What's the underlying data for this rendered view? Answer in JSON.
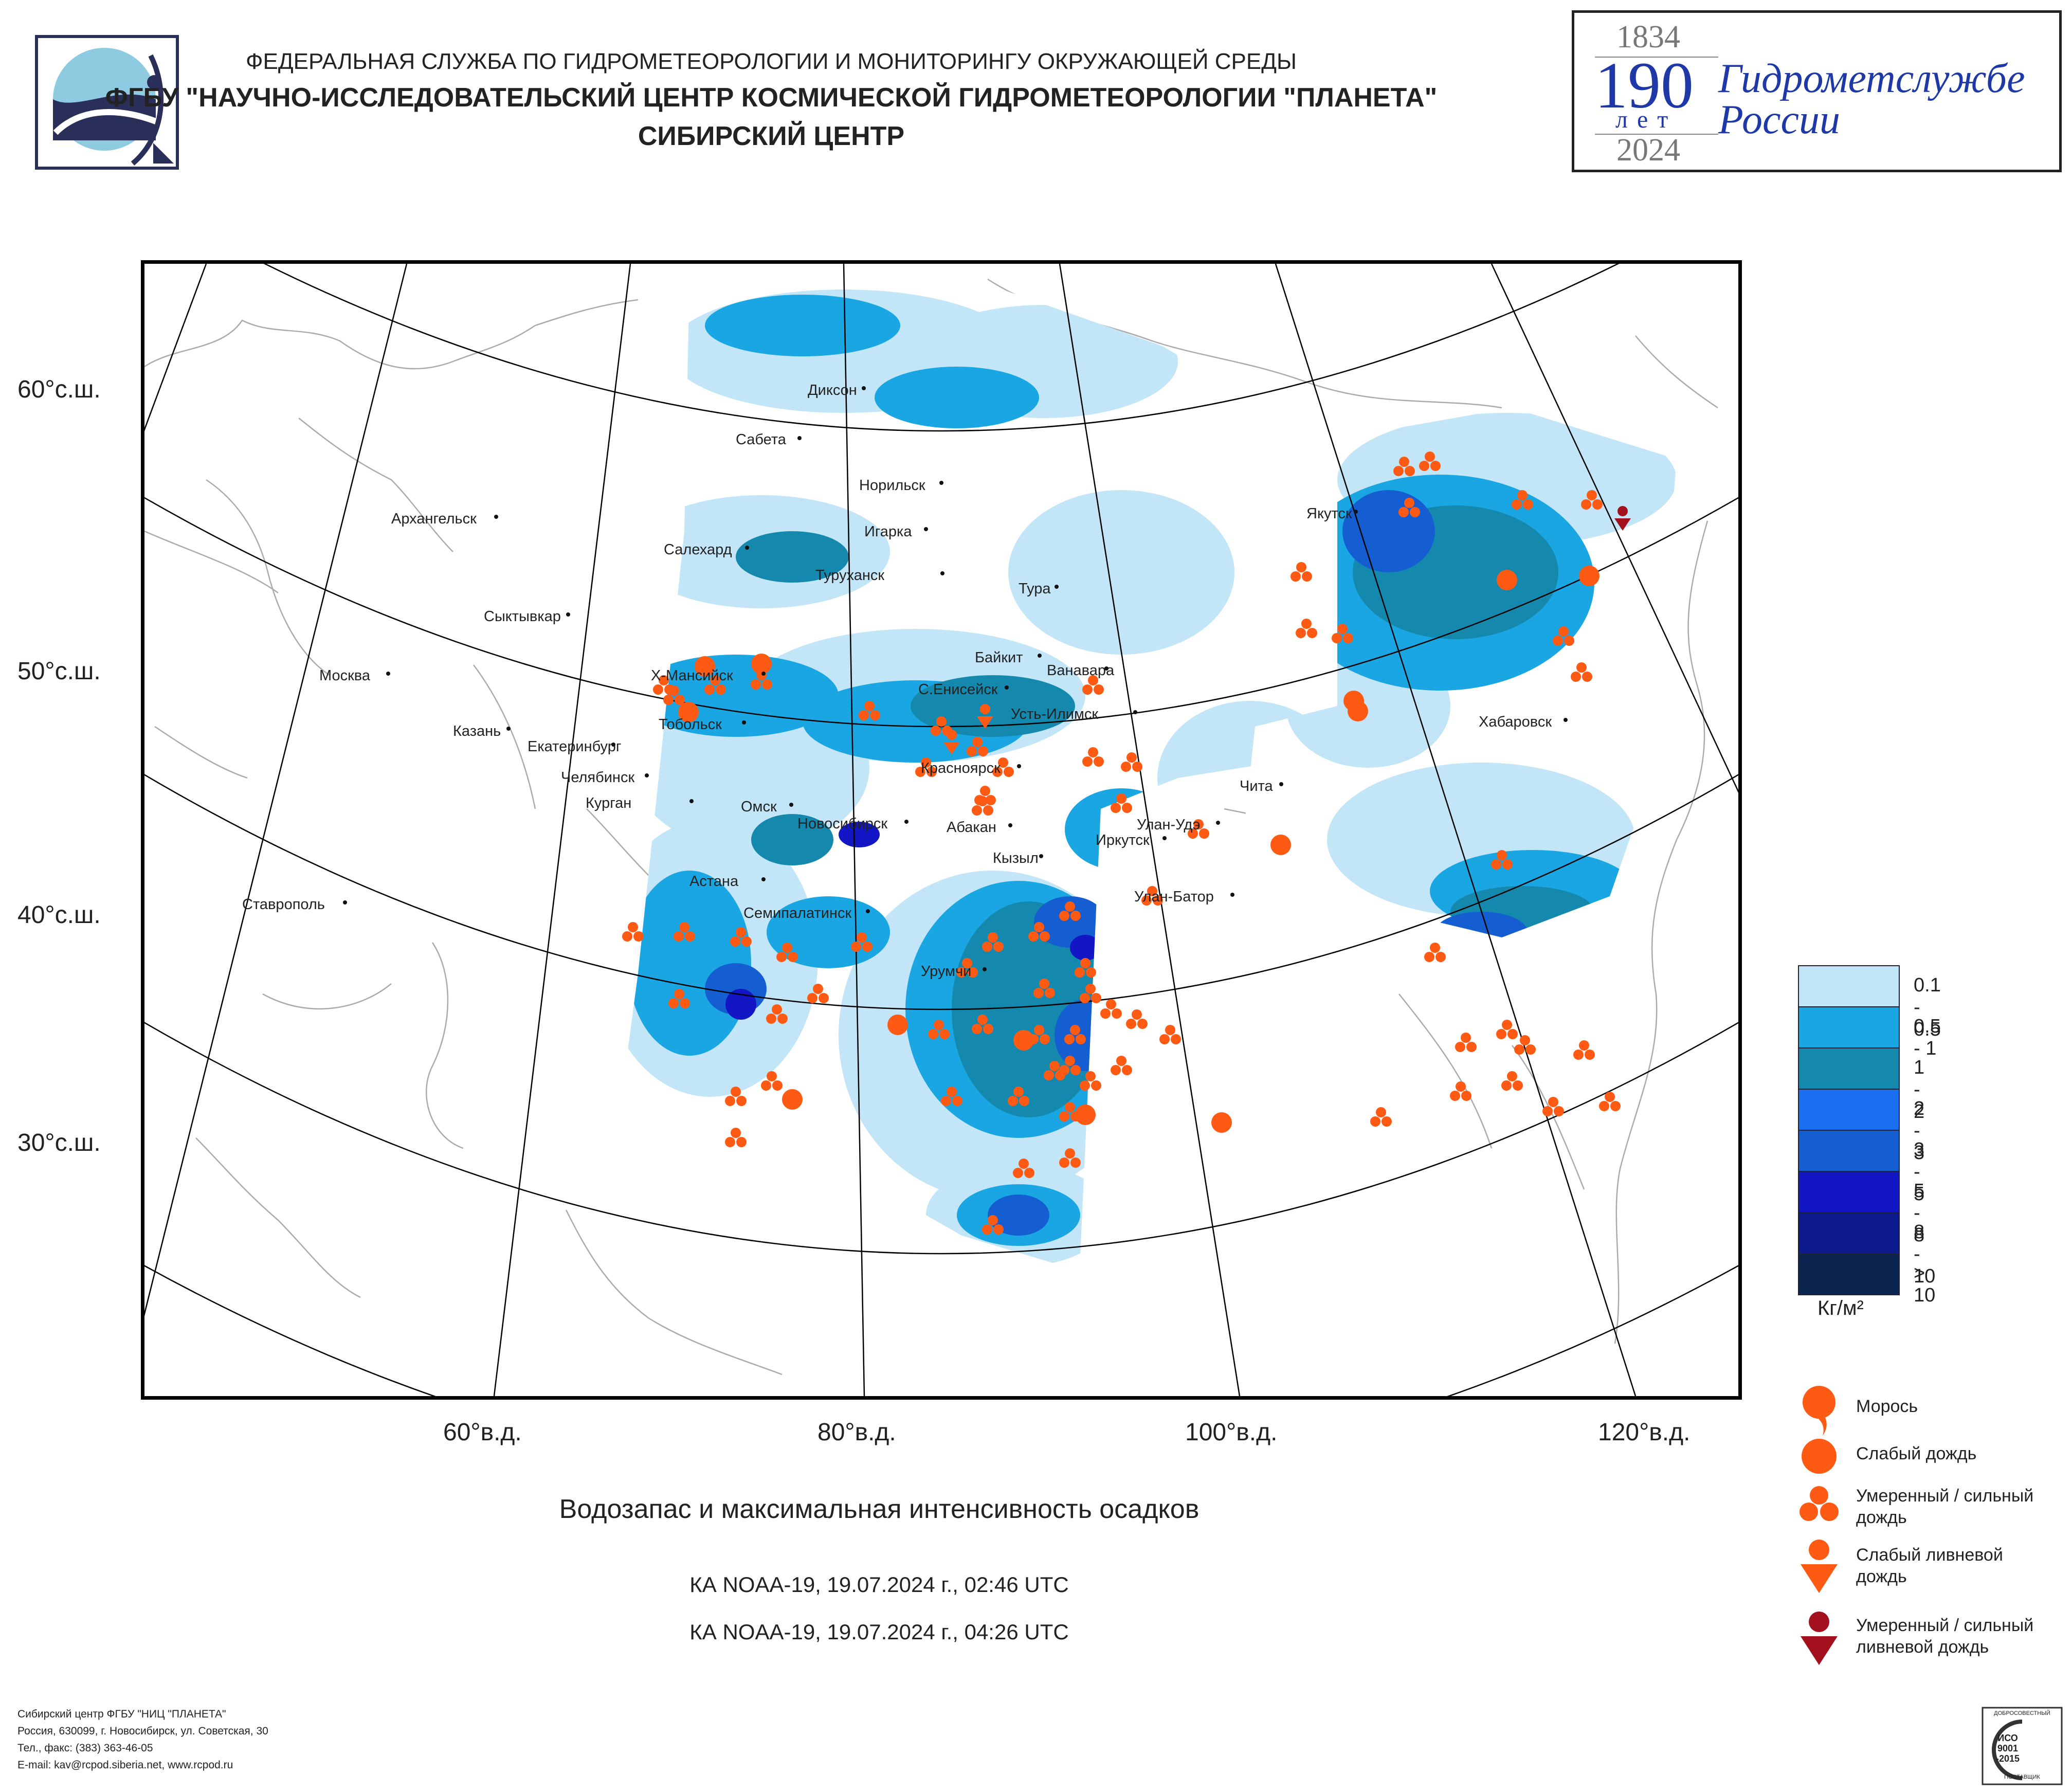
{
  "header": {
    "line1": "ФЕДЕРАЛЬНАЯ СЛУЖБА ПО ГИДРОМЕТЕОРОЛОГИИ И МОНИТОРИНГУ ОКРУЖАЮЩЕЙ СРЕДЫ",
    "line2": "ФГБУ \"НАУЧНО-ИССЛЕДОВАТЕЛЬСКИЙ ЦЕНТР КОСМИЧЕСКОЙ ГИДРОМЕТЕОРОЛОГИИ \"ПЛАНЕТА\"",
    "line3": "СИБИРСКИЙ ЦЕНТР"
  },
  "anniversary": {
    "year_start": "1834",
    "number": "190",
    "unit": "лет",
    "text_line1": "Гидрометслужбе",
    "text_line2": "России",
    "year_end": "2024"
  },
  "map": {
    "lat_labels": [
      "60°с.ш.",
      "50°с.ш.",
      "40°с.ш.",
      "30°с.ш."
    ],
    "lon_labels": [
      "60°в.д.",
      "80°в.д.",
      "100°в.д.",
      "120°в.д."
    ],
    "cities": [
      "Диксон",
      "Сабета",
      "Норильск",
      "Игарка",
      "Салехард",
      "Туруханск",
      "Тура",
      "Якутск",
      "Архангельск",
      "Сыктывкар",
      "Москва",
      "Казань",
      "Екатеринбург",
      "Челябинск",
      "Курган",
      "Х-Мансийск",
      "Тобольск",
      "Омск",
      "Новосибирск",
      "Байкит",
      "Ванавара",
      "С.Енисейск",
      "Усть-Илимск",
      "Красноярск",
      "Абакан",
      "Кызыл",
      "Иркутск",
      "Улан-Удэ",
      "Чита",
      "Улан-Батор",
      "Хабаровск",
      "Астана",
      "Семипалатинск",
      "Ставрополь",
      "Урумчи"
    ]
  },
  "title": {
    "main": "Водозапас и максимальная интенсивность осадков",
    "pass1": "КА NOAA-19, 19.07.2024 г., 02:46 UTC",
    "pass2": "КА NOAA-19, 19.07.2024 г., 04:26 UTC"
  },
  "legend": {
    "scale": [
      {
        "label": "0.1 - 0.5",
        "color": "#c2e6f8"
      },
      {
        "label": "0.5 - 1",
        "color": "#1aa6e2"
      },
      {
        "label": "1 - 2",
        "color": "#1489ad"
      },
      {
        "label": "2 - 3",
        "color": "#1a6ff0"
      },
      {
        "label": "3 - 5",
        "color": "#155ed2"
      },
      {
        "label": "5 - 8",
        "color": "#1216c4"
      },
      {
        "label": "8 - 10",
        "color": "#0c1a8c"
      },
      {
        "label": "> 10",
        "color": "#0b2550"
      }
    ],
    "unit": "Кг/м²",
    "symbols": [
      {
        "label": "Морось",
        "color": "#ff5a14"
      },
      {
        "label": "Слабый дождь",
        "color": "#ff5a14"
      },
      {
        "label": "Умеренный / сильный дождь",
        "color": "#ff5a14"
      },
      {
        "label": "Слабый ливневой дождь",
        "color": "#ff5a14"
      },
      {
        "label": "Умеренный / сильный ливневой дождь",
        "color": "#a3101e"
      }
    ]
  },
  "footer": {
    "line1": "Сибирский центр ФГБУ \"НИЦ \"ПЛАНЕТА\"",
    "line2": "Россия, 630099, г. Новосибирск, ул. Советская, 30",
    "line3": "Тел., факс: (383) 363-46-05",
    "line4": "E-mail: kav@rcpod.siberia.net, www.rcpod.ru"
  },
  "iso": {
    "top": "ДОБРОСОВЕСТНЫЙ",
    "std": "ИСО 9001 -2015",
    "bottom": "ПОСТАВЩИК"
  }
}
